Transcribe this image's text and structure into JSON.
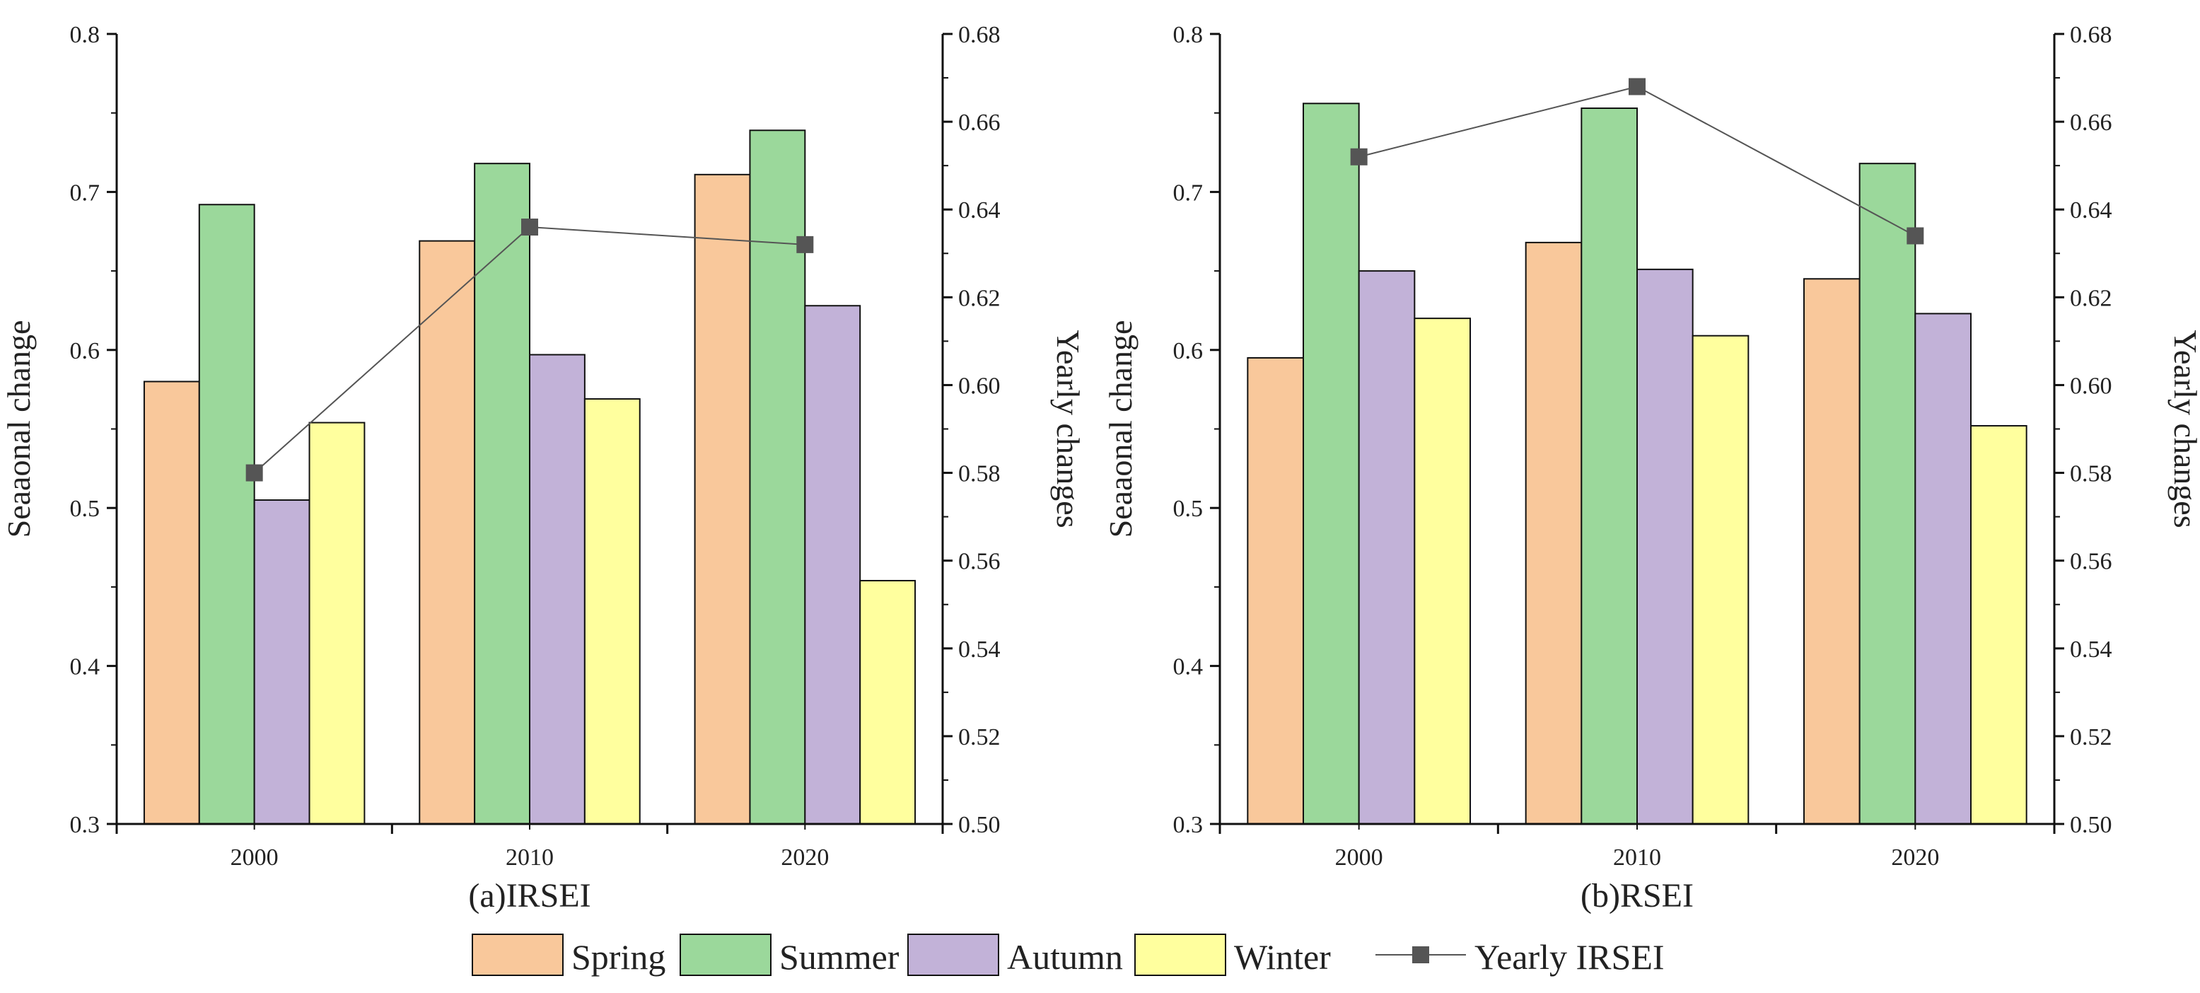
{
  "chart_data": [
    {
      "type": "bar",
      "caption": "(a)IRSEI",
      "categories": [
        "2000",
        "2010",
        "2020"
      ],
      "ylabel": "Seaaonal change",
      "y2label": "Yearly changes",
      "ylim": [
        0.3,
        0.8
      ],
      "y2lim": [
        0.5,
        0.68
      ],
      "yticks": [
        "0.3",
        "0.4",
        "0.5",
        "0.6",
        "0.7",
        "0.8"
      ],
      "y2ticks": [
        "0.50",
        "0.52",
        "0.54",
        "0.56",
        "0.58",
        "0.60",
        "0.62",
        "0.64",
        "0.66",
        "0.68"
      ],
      "series": [
        {
          "name": "Spring",
          "values": [
            0.58,
            0.669,
            0.711
          ]
        },
        {
          "name": "Summer",
          "values": [
            0.692,
            0.718,
            0.739
          ]
        },
        {
          "name": "Autumn",
          "values": [
            0.505,
            0.597,
            0.628
          ]
        },
        {
          "name": "Winter",
          "values": [
            0.554,
            0.569,
            0.454
          ]
        }
      ],
      "line_series": {
        "name": "Yearly IRSEI",
        "axis": "right",
        "values": [
          0.58,
          0.636,
          0.632
        ]
      }
    },
    {
      "type": "bar",
      "caption": "(b)RSEI",
      "categories": [
        "2000",
        "2010",
        "2020"
      ],
      "ylabel": "Seaaonal change",
      "y2label": "Yearly changes",
      "ylim": [
        0.3,
        0.8
      ],
      "y2lim": [
        0.5,
        0.68
      ],
      "yticks": [
        "0.3",
        "0.4",
        "0.5",
        "0.6",
        "0.7",
        "0.8"
      ],
      "y2ticks": [
        "0.50",
        "0.52",
        "0.54",
        "0.56",
        "0.58",
        "0.60",
        "0.62",
        "0.64",
        "0.66",
        "0.68"
      ],
      "series": [
        {
          "name": "Spring",
          "values": [
            0.595,
            0.668,
            0.645
          ]
        },
        {
          "name": "Summer",
          "values": [
            0.756,
            0.753,
            0.718
          ]
        },
        {
          "name": "Autumn",
          "values": [
            0.65,
            0.651,
            0.623
          ]
        },
        {
          "name": "Winter",
          "values": [
            0.62,
            0.609,
            0.552
          ]
        }
      ],
      "line_series": {
        "name": "Yearly IRSEI",
        "axis": "right",
        "values": [
          0.652,
          0.668,
          0.634
        ]
      }
    }
  ],
  "legend": {
    "position": "bottom-center",
    "items": [
      {
        "label": "Spring",
        "color": "#F9C89B"
      },
      {
        "label": "Summer",
        "color": "#9BD89B"
      },
      {
        "label": "Autumn",
        "color": "#C2B2D8"
      },
      {
        "label": "Winter",
        "color": "#FFFF9E"
      },
      {
        "label": "Yearly IRSEI",
        "color": "#555555"
      }
    ]
  }
}
